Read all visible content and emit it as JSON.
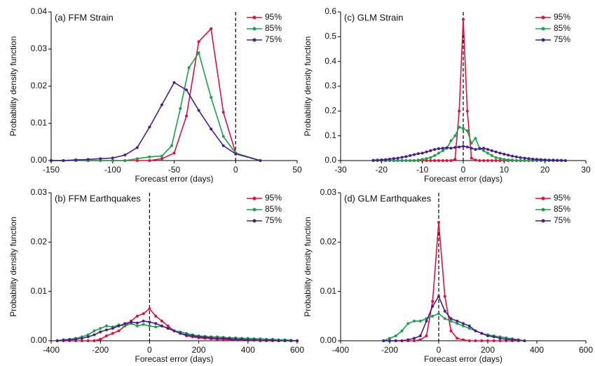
{
  "chart_data": [
    {
      "type": "line",
      "title": "(a) FFM Strain",
      "xlabel": "Forecast error (days)",
      "ylabel": "Probability density function",
      "xlim": [
        -150,
        50
      ],
      "xticks": [
        -150,
        -100,
        -50,
        0,
        50
      ],
      "ylim": [
        0,
        0.04
      ],
      "yticks": [
        {
          "value": 0,
          "label": "0.00"
        },
        0.01,
        0.02,
        0.03,
        0.04
      ],
      "vline": 0,
      "series": [
        {
          "name": "95%",
          "color": "#e0103c",
          "x": [
            -150,
            -140,
            -130,
            -120,
            -110,
            -100,
            -90,
            -80,
            -70,
            -60,
            -50,
            -40,
            -30,
            -20,
            -10,
            0,
            20
          ],
          "values": [
            0,
            0,
            0,
            0,
            0,
            0,
            0,
            0,
            0,
            0.0005,
            0.002,
            0.012,
            0.032,
            0.0355,
            0.013,
            0.002,
            0
          ]
        },
        {
          "name": "85%",
          "color": "#1aa24a",
          "x": [
            -150,
            -140,
            -130,
            -120,
            -110,
            -100,
            -90,
            -80,
            -70,
            -60,
            -52,
            -45,
            -38,
            -30,
            -20,
            -10,
            0,
            20
          ],
          "values": [
            0,
            0,
            0,
            0,
            0,
            0,
            0,
            0.0005,
            0.001,
            0.0012,
            0.004,
            0.014,
            0.025,
            0.029,
            0.017,
            0.0065,
            0.002,
            0
          ]
        },
        {
          "name": "75%",
          "color": "#4b1e8c",
          "x": [
            -150,
            -140,
            -130,
            -120,
            -110,
            -100,
            -90,
            -80,
            -70,
            -60,
            -50,
            -40,
            -30,
            -20,
            -10,
            0,
            20
          ],
          "values": [
            0,
            0,
            0.0002,
            0.0003,
            0.0005,
            0.0007,
            0.0015,
            0.0035,
            0.009,
            0.015,
            0.021,
            0.019,
            0.0135,
            0.0085,
            0.004,
            0.0018,
            0
          ]
        }
      ]
    },
    {
      "type": "line",
      "title": "(c) GLM Strain",
      "xlabel": "Forecast error (days)",
      "ylabel": "Probability density function",
      "xlim": [
        -30,
        30
      ],
      "xticks": [
        -30,
        -20,
        -10,
        0,
        10,
        20,
        30
      ],
      "ylim": [
        0,
        0.6
      ],
      "yticks": [
        {
          "value": 0,
          "label": "0.0"
        },
        0.1,
        0.2,
        0.3,
        0.4,
        0.5,
        0.6
      ],
      "vline": 0,
      "x": [
        -22,
        -21,
        -20,
        -19,
        -18,
        -17,
        -16,
        -15,
        -14,
        -13,
        -12,
        -11,
        -10,
        -9,
        -8,
        -7,
        -6,
        -5,
        -4,
        -3,
        -2,
        -1,
        0,
        1,
        2,
        3,
        4,
        5,
        6,
        7,
        8,
        9,
        10,
        11,
        12,
        13,
        14,
        15,
        16,
        17,
        18,
        19,
        20,
        21,
        22,
        23,
        24,
        25
      ],
      "series": [
        {
          "name": "95%",
          "color": "#e0103c",
          "values": [
            0,
            0,
            0,
            0,
            0,
            0,
            0,
            0,
            0,
            0,
            0,
            0,
            0,
            0,
            0,
            0,
            0,
            0,
            0,
            0,
            0.005,
            0.2,
            0.57,
            0.2,
            0.01,
            0.002,
            0,
            0,
            0,
            0,
            0,
            0,
            0,
            0,
            0,
            0,
            0,
            0,
            0,
            0,
            0,
            0,
            0,
            0,
            0,
            0,
            0,
            0
          ]
        },
        {
          "name": "85%",
          "color": "#1aa24a",
          "values": [
            0,
            0,
            0,
            0,
            0,
            0,
            0,
            0,
            0,
            0,
            0,
            0.002,
            0.005,
            0.008,
            0.012,
            0.02,
            0.03,
            0.04,
            0.05,
            0.08,
            0.1,
            0.135,
            0.13,
            0.12,
            0.07,
            0.09,
            0.05,
            0.04,
            0.03,
            0.02,
            0.012,
            0.008,
            0.005,
            0.003,
            0.002,
            0,
            0,
            0,
            0,
            0,
            0,
            0,
            0,
            0,
            0,
            0,
            0,
            0
          ]
        },
        {
          "name": "75%",
          "color": "#4b1e8c",
          "values": [
            0.001,
            0.002,
            0.003,
            0.004,
            0.006,
            0.008,
            0.01,
            0.013,
            0.016,
            0.02,
            0.024,
            0.028,
            0.03,
            0.035,
            0.04,
            0.045,
            0.048,
            0.05,
            0.052,
            0.05,
            0.053,
            0.055,
            0.058,
            0.055,
            0.05,
            0.045,
            0.048,
            0.05,
            0.045,
            0.04,
            0.035,
            0.03,
            0.026,
            0.022,
            0.018,
            0.015,
            0.012,
            0.01,
            0.008,
            0.006,
            0.005,
            0.004,
            0.003,
            0.002,
            0.002,
            0.001,
            0.001,
            0
          ]
        }
      ]
    },
    {
      "type": "line",
      "title": "(b) FFM Earthquakes",
      "xlabel": "Forecast error (days)",
      "ylabel": "Probability density function",
      "xlim": [
        -400,
        600
      ],
      "xticks": [
        -400,
        -200,
        0,
        200,
        400,
        600
      ],
      "ylim": [
        0,
        0.03
      ],
      "yticks": [
        {
          "value": 0,
          "label": "0.00"
        },
        0.01,
        0.02,
        0.03
      ],
      "vline": 0,
      "x": [
        -375,
        -350,
        -325,
        -300,
        -275,
        -250,
        -225,
        -200,
        -175,
        -150,
        -125,
        -100,
        -75,
        -50,
        -25,
        0,
        25,
        50,
        75,
        100,
        125,
        150,
        175,
        200,
        225,
        250,
        275,
        300,
        325,
        350,
        375,
        400,
        425,
        450,
        475,
        500,
        525,
        550,
        575,
        600
      ],
      "series": [
        {
          "name": "95%",
          "color": "#e0103c",
          "values": [
            0,
            0,
            0,
            0,
            0,
            0,
            0,
            0.0003,
            0.001,
            0.0015,
            0.002,
            0.003,
            0.004,
            0.005,
            0.0055,
            0.0065,
            0.005,
            0.004,
            0.003,
            0.002,
            0.0015,
            0.001,
            0.0008,
            0.0006,
            0.0005,
            0.0004,
            0.0003,
            0.0003,
            0.0002,
            0.0002,
            0.0002,
            0.0001,
            0.0001,
            0,
            0,
            0,
            0,
            0,
            0,
            0
          ]
        },
        {
          "name": "85%",
          "color": "#1aa24a",
          "values": [
            0,
            0.0002,
            0.0003,
            0.0005,
            0.0008,
            0.0012,
            0.002,
            0.0025,
            0.003,
            0.0028,
            0.0032,
            0.003,
            0.0035,
            0.003,
            0.0033,
            0.003,
            0.0028,
            0.003,
            0.0025,
            0.002,
            0.0018,
            0.0015,
            0.0012,
            0.001,
            0.0009,
            0.0008,
            0.0008,
            0.0007,
            0.0006,
            0.0006,
            0.0005,
            0.0005,
            0.0004,
            0.0004,
            0.0003,
            0.0003,
            0.0002,
            0.0002,
            0.0001,
            0
          ]
        },
        {
          "name": "75%",
          "color": "#4b1e8c",
          "values": [
            0,
            0.0001,
            0.0002,
            0.0003,
            0.0005,
            0.0008,
            0.0012,
            0.0018,
            0.0022,
            0.0025,
            0.003,
            0.0035,
            0.0038,
            0.0036,
            0.004,
            0.0038,
            0.0035,
            0.003,
            0.0025,
            0.002,
            0.0015,
            0.0012,
            0.001,
            0.0008,
            0.0007,
            0.0006,
            0.0005,
            0.0005,
            0.0004,
            0.0003,
            0.0003,
            0.0002,
            0.0002,
            0.0001,
            0.0001,
            0.0001,
            0,
            0,
            0,
            0
          ]
        }
      ]
    },
    {
      "type": "line",
      "title": "(d) GLM Earthquakes",
      "xlabel": "Forecast error (days)",
      "ylabel": "Probability density function",
      "xlim": [
        -400,
        600
      ],
      "xticks": [
        -400,
        -200,
        0,
        200,
        400,
        600
      ],
      "ylim": [
        0,
        0.03
      ],
      "yticks": [
        {
          "value": 0,
          "label": "0.00"
        },
        0.01,
        0.02,
        0.03
      ],
      "vline": 0,
      "x": [
        -225,
        -200,
        -175,
        -150,
        -125,
        -100,
        -75,
        -50,
        -25,
        0,
        25,
        50,
        75,
        100,
        125,
        150,
        175,
        200,
        225,
        250,
        275,
        300,
        325,
        350
      ],
      "series": [
        {
          "name": "95%",
          "color": "#e0103c",
          "values": [
            0,
            0,
            0,
            0,
            0,
            0,
            0.0002,
            0.001,
            0.008,
            0.024,
            0.009,
            0.002,
            0.0005,
            0.0002,
            0,
            0,
            0,
            0,
            0,
            0,
            0,
            0,
            0,
            0
          ]
        },
        {
          "name": "85%",
          "color": "#1aa24a",
          "values": [
            0,
            0.0005,
            0.001,
            0.002,
            0.0035,
            0.004,
            0.004,
            0.0045,
            0.005,
            0.0055,
            0.0045,
            0.004,
            0.0035,
            0.003,
            0.0025,
            0.002,
            0.0015,
            0.0012,
            0.001,
            0.0008,
            0.0006,
            0.0004,
            0.0002,
            0
          ]
        },
        {
          "name": "75%",
          "color": "#4b1e8c",
          "values": [
            0,
            0,
            0,
            0,
            0.0002,
            0.0005,
            0.001,
            0.004,
            0.007,
            0.009,
            0.006,
            0.0045,
            0.004,
            0.0035,
            0.003,
            0.002,
            0.0015,
            0.001,
            0.0008,
            0.0005,
            0.0003,
            0.0002,
            0.0001,
            0
          ]
        }
      ]
    }
  ]
}
